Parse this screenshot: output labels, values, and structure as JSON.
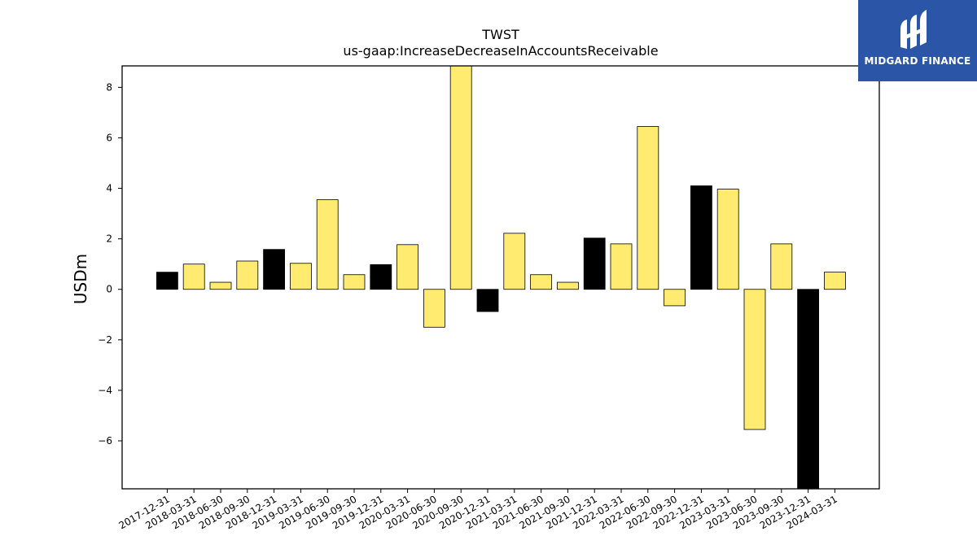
{
  "chart_data": {
    "type": "bar",
    "title": "TWST",
    "subtitle": "us-gaap:IncreaseDecreaseInAccountsReceivable",
    "xlabel": "",
    "ylabel": "USDm",
    "ylim": [
      -7.9,
      8.85
    ],
    "yticks": [
      -6,
      -4,
      -2,
      0,
      2,
      4,
      6,
      8
    ],
    "ytick_labels": [
      "−6",
      "−4",
      "−2",
      "0",
      "2",
      "4",
      "6",
      "8"
    ],
    "grid": false,
    "categories": [
      "2017-12-31",
      "2018-03-31",
      "2018-06-30",
      "2018-09-30",
      "2018-12-31",
      "2019-03-31",
      "2019-06-30",
      "2019-09-30",
      "2019-12-31",
      "2020-03-31",
      "2020-06-30",
      "2020-09-30",
      "2020-12-31",
      "2021-03-31",
      "2021-06-30",
      "2021-09-30",
      "2021-12-31",
      "2022-03-31",
      "2022-06-30",
      "2022-09-30",
      "2022-12-31",
      "2023-03-31",
      "2023-06-30",
      "2023-09-30",
      "2023-12-31",
      "2024-03-31"
    ],
    "values": [
      0.68,
      1.0,
      0.28,
      1.12,
      1.58,
      1.03,
      3.55,
      0.58,
      0.98,
      1.77,
      -1.5,
      9.2,
      -0.88,
      2.22,
      0.58,
      0.28,
      2.03,
      1.8,
      6.45,
      -0.65,
      4.1,
      3.97,
      -5.55,
      1.8,
      -8.2,
      0.68
    ],
    "colors": [
      "#000000",
      "#ffeb70",
      "#ffeb70",
      "#ffeb70",
      "#000000",
      "#ffeb70",
      "#ffeb70",
      "#ffeb70",
      "#000000",
      "#ffeb70",
      "#ffeb70",
      "#ffeb70",
      "#000000",
      "#ffeb70",
      "#ffeb70",
      "#ffeb70",
      "#000000",
      "#ffeb70",
      "#ffeb70",
      "#ffeb70",
      "#000000",
      "#ffeb70",
      "#ffeb70",
      "#ffeb70",
      "#000000",
      "#ffeb70"
    ]
  },
  "logo": {
    "text": "MIDGARD FINANCE",
    "background": "#2b56a8",
    "icon": "midgard-logo-icon"
  }
}
